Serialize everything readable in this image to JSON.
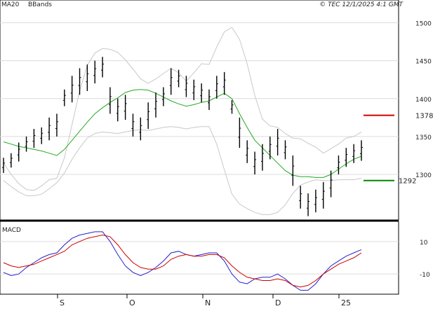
{
  "header": {
    "legend_ma20": "MA20",
    "legend_bbands": "BBands",
    "copyright": "© TEC 12/1/2025 4:1 GMT"
  },
  "colors": {
    "price_bar": "#000000",
    "ma20": "#22aa22",
    "bbands": "#c8c8c8",
    "resistance": "#cc0000",
    "support": "#008800",
    "macd": "#2222cc",
    "signal": "#cc0000",
    "grid": "#dcdcdc"
  },
  "chart_data": [
    {
      "type": "ohlc",
      "panel": "price",
      "y_ticks": [
        1300,
        1350,
        1400,
        1450,
        1500
      ],
      "ylim": [
        1240,
        1530
      ],
      "x_labels": [
        "S",
        "O",
        "N",
        "D",
        "25"
      ],
      "grid": true,
      "series": [
        {
          "name": "MA20",
          "kind": "line",
          "values": [
            1343,
            1340,
            1337,
            1335,
            1333,
            1331,
            1328,
            1325,
            1333,
            1345,
            1357,
            1369,
            1380,
            1388,
            1395,
            1401,
            1408,
            1411,
            1412,
            1411,
            1407,
            1402,
            1397,
            1393,
            1390,
            1392,
            1395,
            1397,
            1402,
            1407,
            1400,
            1380,
            1362,
            1345,
            1335,
            1325,
            1315,
            1305,
            1299,
            1297,
            1297,
            1296,
            1296,
            1300,
            1307,
            1314,
            1320,
            1324
          ]
        },
        {
          "name": "BBands",
          "kind": "line",
          "values": [
            1315,
            1300,
            1288,
            1280,
            1279,
            1285,
            1293,
            1295,
            1322,
            1366,
            1410,
            1444,
            1460,
            1466,
            1465,
            1461,
            1451,
            1439,
            1426,
            1420,
            1426,
            1433,
            1440,
            1434,
            1423,
            1434,
            1446,
            1445,
            1468,
            1488,
            1494,
            1478,
            1446,
            1404,
            1373,
            1364,
            1362,
            1354,
            1348,
            1347,
            1341,
            1336,
            1328,
            1334,
            1340,
            1348,
            1350,
            1356
          ]
        },
        {
          "name": "BBands",
          "kind": "line",
          "values": [
            1292,
            1284,
            1277,
            1272,
            1272,
            1274,
            1281,
            1289,
            1302,
            1320,
            1335,
            1348,
            1354,
            1356,
            1355,
            1354,
            1356,
            1358,
            1359,
            1358,
            1360,
            1362,
            1363,
            1362,
            1360,
            1362,
            1363,
            1363,
            1340,
            1306,
            1274,
            1261,
            1255,
            1250,
            1247,
            1247,
            1250,
            1260,
            1275,
            1286,
            1290,
            1293,
            1292,
            1292,
            1293,
            1293,
            1293,
            1295
          ]
        }
      ],
      "ohlc": [
        {
          "low": 1302,
          "high": 1322
        },
        {
          "low": 1309,
          "high": 1328
        },
        {
          "low": 1317,
          "high": 1342
        },
        {
          "low": 1330,
          "high": 1350
        },
        {
          "low": 1335,
          "high": 1360
        },
        {
          "low": 1340,
          "high": 1362
        },
        {
          "low": 1345,
          "high": 1375
        },
        {
          "low": 1350,
          "high": 1380
        },
        {
          "low": 1390,
          "high": 1412
        },
        {
          "low": 1395,
          "high": 1430
        },
        {
          "low": 1405,
          "high": 1440
        },
        {
          "low": 1410,
          "high": 1445
        },
        {
          "low": 1420,
          "high": 1450
        },
        {
          "low": 1428,
          "high": 1455
        },
        {
          "low": 1380,
          "high": 1415
        },
        {
          "low": 1370,
          "high": 1400
        },
        {
          "low": 1372,
          "high": 1405
        },
        {
          "low": 1350,
          "high": 1380
        },
        {
          "low": 1345,
          "high": 1375
        },
        {
          "low": 1360,
          "high": 1395
        },
        {
          "low": 1375,
          "high": 1408
        },
        {
          "low": 1390,
          "high": 1415
        },
        {
          "low": 1405,
          "high": 1440
        },
        {
          "low": 1415,
          "high": 1438
        },
        {
          "low": 1402,
          "high": 1430
        },
        {
          "low": 1398,
          "high": 1425
        },
        {
          "low": 1395,
          "high": 1420
        },
        {
          "low": 1385,
          "high": 1412
        },
        {
          "low": 1400,
          "high": 1430
        },
        {
          "low": 1405,
          "high": 1435
        },
        {
          "low": 1380,
          "high": 1398
        },
        {
          "low": 1335,
          "high": 1375
        },
        {
          "low": 1315,
          "high": 1345
        },
        {
          "low": 1300,
          "high": 1330
        },
        {
          "low": 1305,
          "high": 1340
        },
        {
          "low": 1320,
          "high": 1350
        },
        {
          "low": 1325,
          "high": 1360
        },
        {
          "low": 1320,
          "high": 1345
        },
        {
          "low": 1285,
          "high": 1325
        },
        {
          "low": 1255,
          "high": 1285
        },
        {
          "low": 1245,
          "high": 1275
        },
        {
          "low": 1250,
          "high": 1280
        },
        {
          "low": 1255,
          "high": 1290
        },
        {
          "low": 1270,
          "high": 1305
        },
        {
          "low": 1300,
          "high": 1325
        },
        {
          "low": 1310,
          "high": 1335
        },
        {
          "low": 1315,
          "high": 1340
        },
        {
          "low": 1318,
          "high": 1345
        }
      ],
      "levels": [
        {
          "name": "resistance",
          "value": 1378,
          "label": "1378"
        },
        {
          "name": "support",
          "value": 1292,
          "label": "1292"
        }
      ]
    },
    {
      "type": "line",
      "panel": "macd",
      "title": "MACD",
      "y_ticks": [
        10,
        -10
      ],
      "y_tick_labels": [
        "10",
        "-10"
      ],
      "ylim": [
        -22,
        22
      ],
      "series": [
        {
          "name": "MACD",
          "values": [
            -9,
            -11,
            -10,
            -6,
            -3,
            0,
            2,
            3,
            8,
            12,
            14,
            15,
            16,
            16,
            10,
            2,
            -5,
            -9,
            -11,
            -9,
            -6,
            -2,
            3,
            4,
            2,
            1,
            2,
            3,
            3,
            -2,
            -10,
            -15,
            -16,
            -13,
            -12,
            -12,
            -10,
            -13,
            -17,
            -20,
            -20,
            -16,
            -10,
            -5,
            -2,
            1,
            3,
            5
          ]
        },
        {
          "name": "Signal",
          "values": [
            -3,
            -5,
            -6,
            -5,
            -4,
            -2,
            0,
            2,
            4,
            8,
            10,
            12,
            13,
            14,
            13,
            8,
            2,
            -3,
            -6,
            -7,
            -7,
            -5,
            -1,
            1,
            2,
            1,
            1,
            2,
            2,
            0,
            -5,
            -9,
            -12,
            -13,
            -14,
            -14,
            -13,
            -14,
            -17,
            -18,
            -17,
            -14,
            -10,
            -7,
            -4,
            -2,
            0,
            3
          ]
        }
      ]
    }
  ]
}
